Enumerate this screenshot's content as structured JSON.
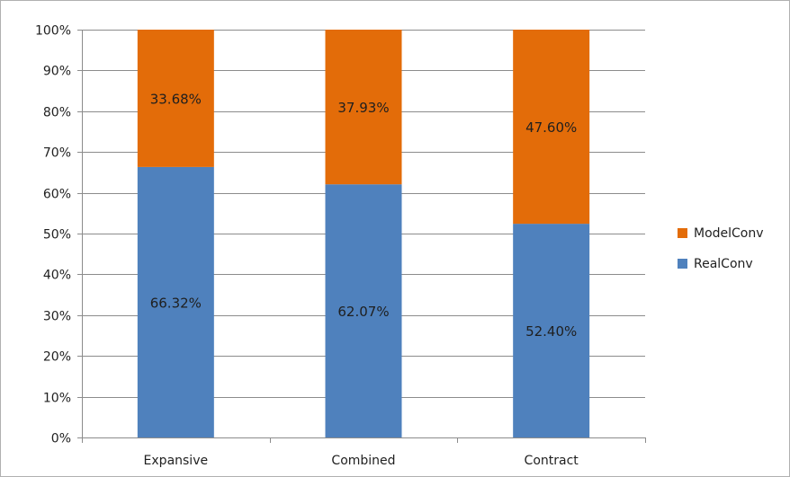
{
  "chart_data": {
    "type": "bar",
    "stacked": true,
    "percent_stacked": true,
    "categories": [
      "Expansive",
      "Combined",
      "Contract"
    ],
    "series": [
      {
        "name": "RealConv",
        "color": "#4F81BD",
        "values": [
          66.32,
          62.07,
          52.4
        ],
        "labels": [
          "66.32%",
          "62.07%",
          "52.40%"
        ]
      },
      {
        "name": "ModelConv",
        "color": "#E36C09",
        "values": [
          33.68,
          37.93,
          47.6
        ],
        "labels": [
          "33.68%",
          "37.93%",
          "47.60%"
        ]
      }
    ],
    "y_ticks": [
      "0%",
      "10%",
      "20%",
      "30%",
      "40%",
      "50%",
      "60%",
      "70%",
      "80%",
      "90%",
      "100%"
    ],
    "ylim": [
      0,
      100
    ],
    "grid": true,
    "legend": {
      "position": "right",
      "entries": [
        "ModelConv",
        "RealConv"
      ]
    },
    "title": "",
    "xlabel": "",
    "ylabel": ""
  }
}
